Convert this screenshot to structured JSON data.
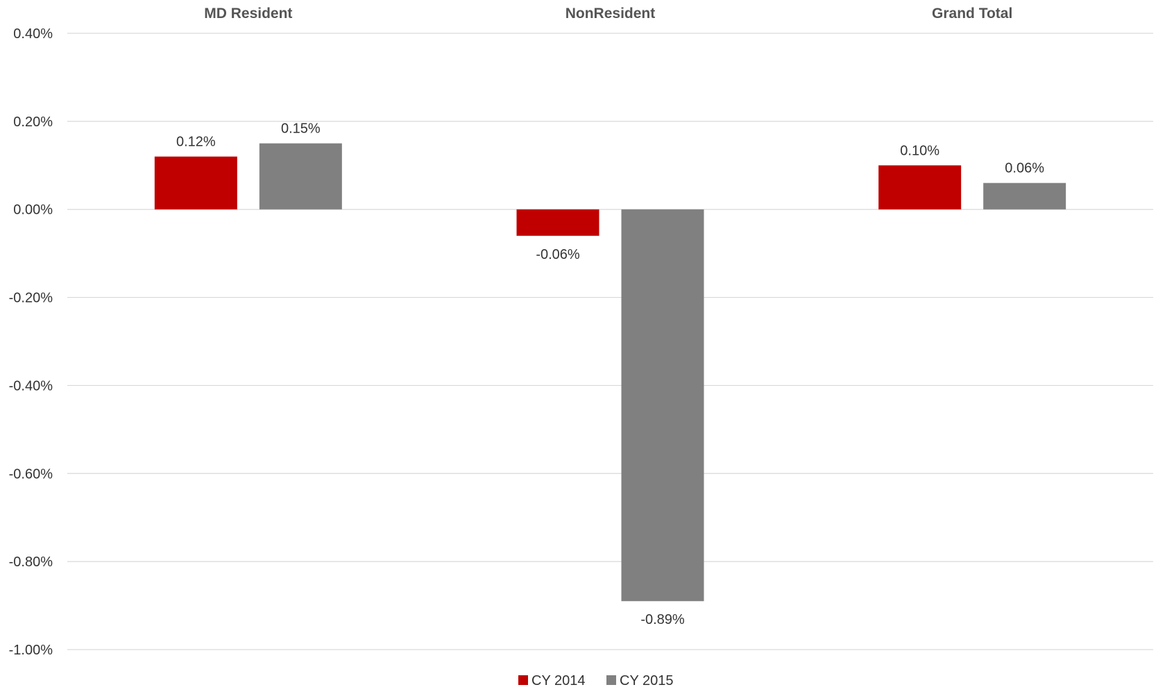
{
  "chart_data": {
    "type": "bar",
    "categories": [
      "MD Resident",
      "NonResident",
      "Grand Total"
    ],
    "series": [
      {
        "name": "CY 2014",
        "color": "#c00000",
        "values": [
          0.12,
          -0.06,
          0.1
        ],
        "labels": [
          "0.12%",
          "-0.06%",
          "0.10%"
        ]
      },
      {
        "name": "CY 2015",
        "color": "#808080",
        "values": [
          0.15,
          -0.89,
          0.06
        ],
        "labels": [
          "0.15%",
          "-0.89%",
          "0.06%"
        ]
      }
    ],
    "ylim": [
      -1.0,
      0.4
    ],
    "yticks": [
      0.4,
      0.2,
      0.0,
      -0.2,
      -0.4,
      -0.6,
      -0.8,
      -1.0
    ],
    "ytick_labels": [
      "0.40%",
      "0.20%",
      "0.00%",
      "-0.20%",
      "-0.40%",
      "-0.60%",
      "-0.80%",
      "-1.00%"
    ],
    "grid": true,
    "legend": "bottom",
    "category_label_position": "top"
  }
}
